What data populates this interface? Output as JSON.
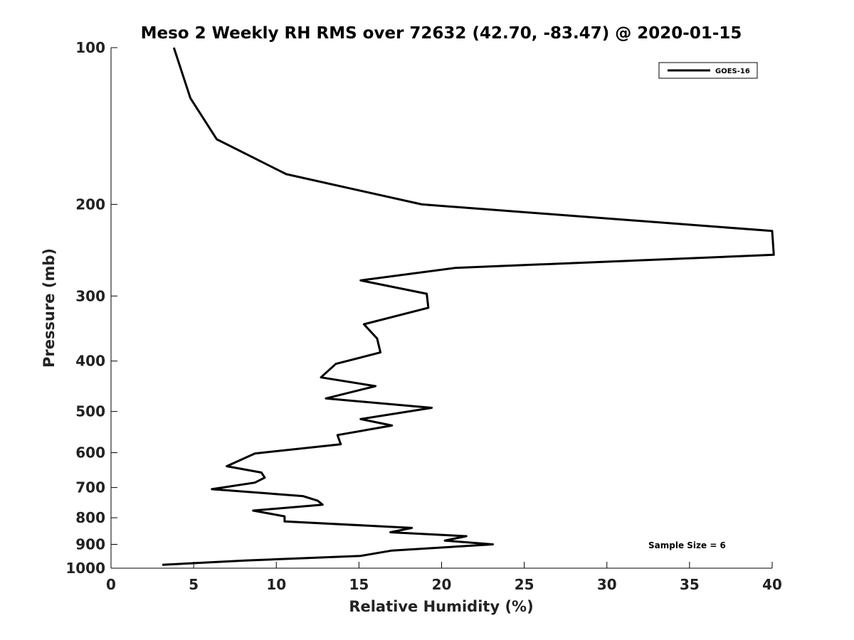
{
  "chart_data": {
    "type": "line",
    "title": "Meso 2 Weekly RH RMS over 72632 (42.70, -83.47) @ 2020-01-15",
    "xlabel": "Relative Humidity (%)",
    "ylabel": "Pressure (mb)",
    "xlim": [
      0,
      40
    ],
    "ylim": [
      1000,
      100
    ],
    "yscale": "log",
    "xticks": [
      0,
      5,
      10,
      15,
      20,
      25,
      30,
      35,
      40
    ],
    "yticks": [
      100,
      200,
      300,
      400,
      500,
      600,
      700,
      800,
      900,
      1000
    ],
    "grid": false,
    "legend": {
      "position": "top-right",
      "entries": [
        "GOES-16"
      ]
    },
    "annotation": "Sample Size = 6",
    "series": [
      {
        "name": "GOES-16",
        "color": "#000000",
        "points": [
          [
            3.8,
            100
          ],
          [
            4.8,
            125
          ],
          [
            6.4,
            150
          ],
          [
            10.6,
            175
          ],
          [
            18.8,
            200
          ],
          [
            40.0,
            225
          ],
          [
            40.1,
            250
          ],
          [
            20.8,
            265
          ],
          [
            15.1,
            280
          ],
          [
            19.1,
            297
          ],
          [
            19.2,
            316
          ],
          [
            15.3,
            340
          ],
          [
            16.1,
            362
          ],
          [
            16.3,
            385
          ],
          [
            13.6,
            405
          ],
          [
            12.7,
            430
          ],
          [
            16.0,
            447
          ],
          [
            13.0,
            472
          ],
          [
            19.4,
            492
          ],
          [
            15.1,
            517
          ],
          [
            17.0,
            532
          ],
          [
            13.7,
            555
          ],
          [
            13.9,
            578
          ],
          [
            8.7,
            602
          ],
          [
            7.0,
            637
          ],
          [
            9.1,
            655
          ],
          [
            9.3,
            670
          ],
          [
            8.7,
            685
          ],
          [
            6.1,
            705
          ],
          [
            11.6,
            727
          ],
          [
            12.5,
            742
          ],
          [
            12.8,
            755
          ],
          [
            8.6,
            775
          ],
          [
            10.5,
            795
          ],
          [
            10.5,
            813
          ],
          [
            18.2,
            837
          ],
          [
            16.9,
            853
          ],
          [
            21.5,
            868
          ],
          [
            20.2,
            885
          ],
          [
            23.1,
            900
          ],
          [
            17.0,
            925
          ],
          [
            15.1,
            947
          ],
          [
            8.1,
            967
          ],
          [
            3.1,
            985
          ]
        ]
      }
    ]
  }
}
